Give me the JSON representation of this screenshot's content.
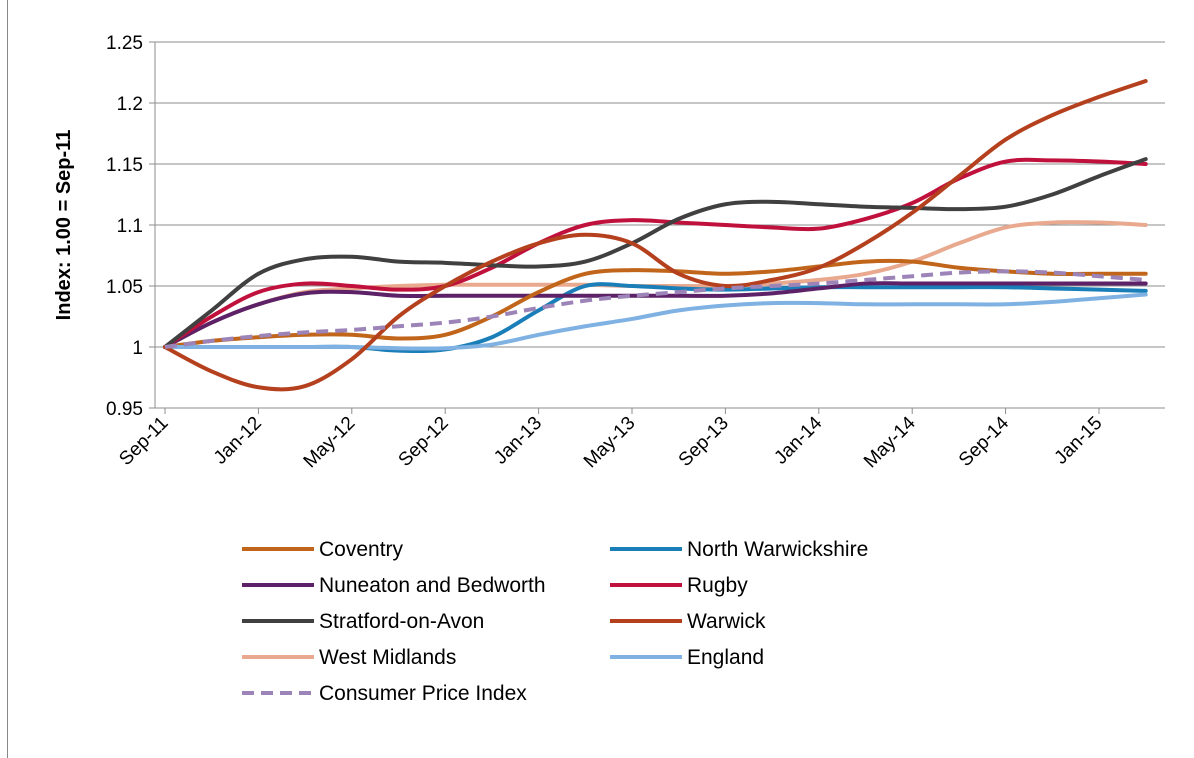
{
  "chart_data": {
    "type": "line",
    "title": "",
    "xlabel": "",
    "ylabel": "Index: 1.00 = Sep-11",
    "ylim": [
      0.95,
      1.25
    ],
    "y_ticks": [
      "0.95",
      "1",
      "1.05",
      "1.1",
      "1.15",
      "1.2",
      "1.25"
    ],
    "y_tick_values": [
      0.95,
      1.0,
      1.05,
      1.1,
      1.15,
      1.2,
      1.25
    ],
    "x_tick_labels": [
      "Sep-11",
      "Jan-12",
      "May-12",
      "Sep-12",
      "Jan-13",
      "May-13",
      "Sep-13",
      "Jan-14",
      "May-14",
      "Sep-14",
      "Jan-15"
    ],
    "x": [
      "Sep-11",
      "Nov-11",
      "Jan-12",
      "Mar-12",
      "May-12",
      "Jul-12",
      "Sep-12",
      "Nov-12",
      "Jan-13",
      "Mar-13",
      "May-13",
      "Jul-13",
      "Sep-13",
      "Nov-13",
      "Jan-14",
      "Mar-14",
      "May-14",
      "Jul-14",
      "Sep-14",
      "Nov-14",
      "Jan-15",
      "Mar-15"
    ],
    "grid": "horizontal",
    "legend_placement": "bottom",
    "series": [
      {
        "name": "Coventry",
        "color": "#C0651A",
        "dash": false,
        "values": [
          1.0,
          1.005,
          1.008,
          1.01,
          1.01,
          1.007,
          1.01,
          1.025,
          1.045,
          1.06,
          1.063,
          1.062,
          1.06,
          1.062,
          1.066,
          1.07,
          1.07,
          1.065,
          1.062,
          1.06,
          1.06,
          1.06
        ]
      },
      {
        "name": "North Warwickshire",
        "color": "#1A7FB8",
        "dash": false,
        "values": [
          1.0,
          1.0,
          1.0,
          1.0,
          1.0,
          0.997,
          0.998,
          1.008,
          1.03,
          1.05,
          1.05,
          1.048,
          1.047,
          1.048,
          1.049,
          1.049,
          1.049,
          1.049,
          1.049,
          1.048,
          1.047,
          1.046
        ]
      },
      {
        "name": "Nuneaton and Bedworth",
        "color": "#5C2166",
        "dash": false,
        "values": [
          1.0,
          1.02,
          1.035,
          1.044,
          1.045,
          1.042,
          1.042,
          1.042,
          1.042,
          1.042,
          1.042,
          1.042,
          1.042,
          1.044,
          1.048,
          1.052,
          1.052,
          1.052,
          1.052,
          1.052,
          1.052,
          1.052
        ]
      },
      {
        "name": "Rugby",
        "color": "#C0103C",
        "dash": false,
        "values": [
          1.0,
          1.025,
          1.045,
          1.052,
          1.05,
          1.047,
          1.05,
          1.065,
          1.085,
          1.1,
          1.104,
          1.102,
          1.1,
          1.098,
          1.097,
          1.105,
          1.118,
          1.138,
          1.152,
          1.153,
          1.152,
          1.15
        ]
      },
      {
        "name": "Stratford-on-Avon",
        "color": "#404040",
        "dash": false,
        "values": [
          1.0,
          1.03,
          1.06,
          1.072,
          1.074,
          1.07,
          1.069,
          1.067,
          1.066,
          1.07,
          1.085,
          1.105,
          1.117,
          1.119,
          1.117,
          1.115,
          1.114,
          1.113,
          1.115,
          1.125,
          1.14,
          1.154
        ]
      },
      {
        "name": "Warwick",
        "color": "#B5401E",
        "dash": false,
        "values": [
          1.0,
          0.98,
          0.967,
          0.968,
          0.99,
          1.025,
          1.05,
          1.07,
          1.085,
          1.092,
          1.085,
          1.06,
          1.05,
          1.055,
          1.065,
          1.085,
          1.11,
          1.14,
          1.17,
          1.19,
          1.205,
          1.218
        ]
      },
      {
        "name": "West Midlands",
        "color": "#E8A98F",
        "dash": false,
        "values": [
          1.0,
          1.02,
          1.035,
          1.045,
          1.048,
          1.05,
          1.051,
          1.051,
          1.051,
          1.051,
          1.05,
          1.05,
          1.05,
          1.052,
          1.055,
          1.06,
          1.07,
          1.085,
          1.098,
          1.102,
          1.102,
          1.1
        ]
      },
      {
        "name": "England",
        "color": "#7FB2E2",
        "dash": false,
        "values": [
          1.0,
          1.0,
          1.0,
          1.0,
          1.0,
          0.999,
          0.999,
          1.002,
          1.01,
          1.017,
          1.023,
          1.03,
          1.034,
          1.036,
          1.036,
          1.035,
          1.035,
          1.035,
          1.035,
          1.037,
          1.04,
          1.043
        ]
      },
      {
        "name": "Consumer Price Index",
        "color": "#9C84B8",
        "dash": true,
        "values": [
          1.0,
          1.005,
          1.009,
          1.012,
          1.014,
          1.017,
          1.02,
          1.025,
          1.032,
          1.038,
          1.042,
          1.045,
          1.048,
          1.05,
          1.052,
          1.055,
          1.058,
          1.061,
          1.062,
          1.061,
          1.058,
          1.055
        ]
      }
    ]
  }
}
